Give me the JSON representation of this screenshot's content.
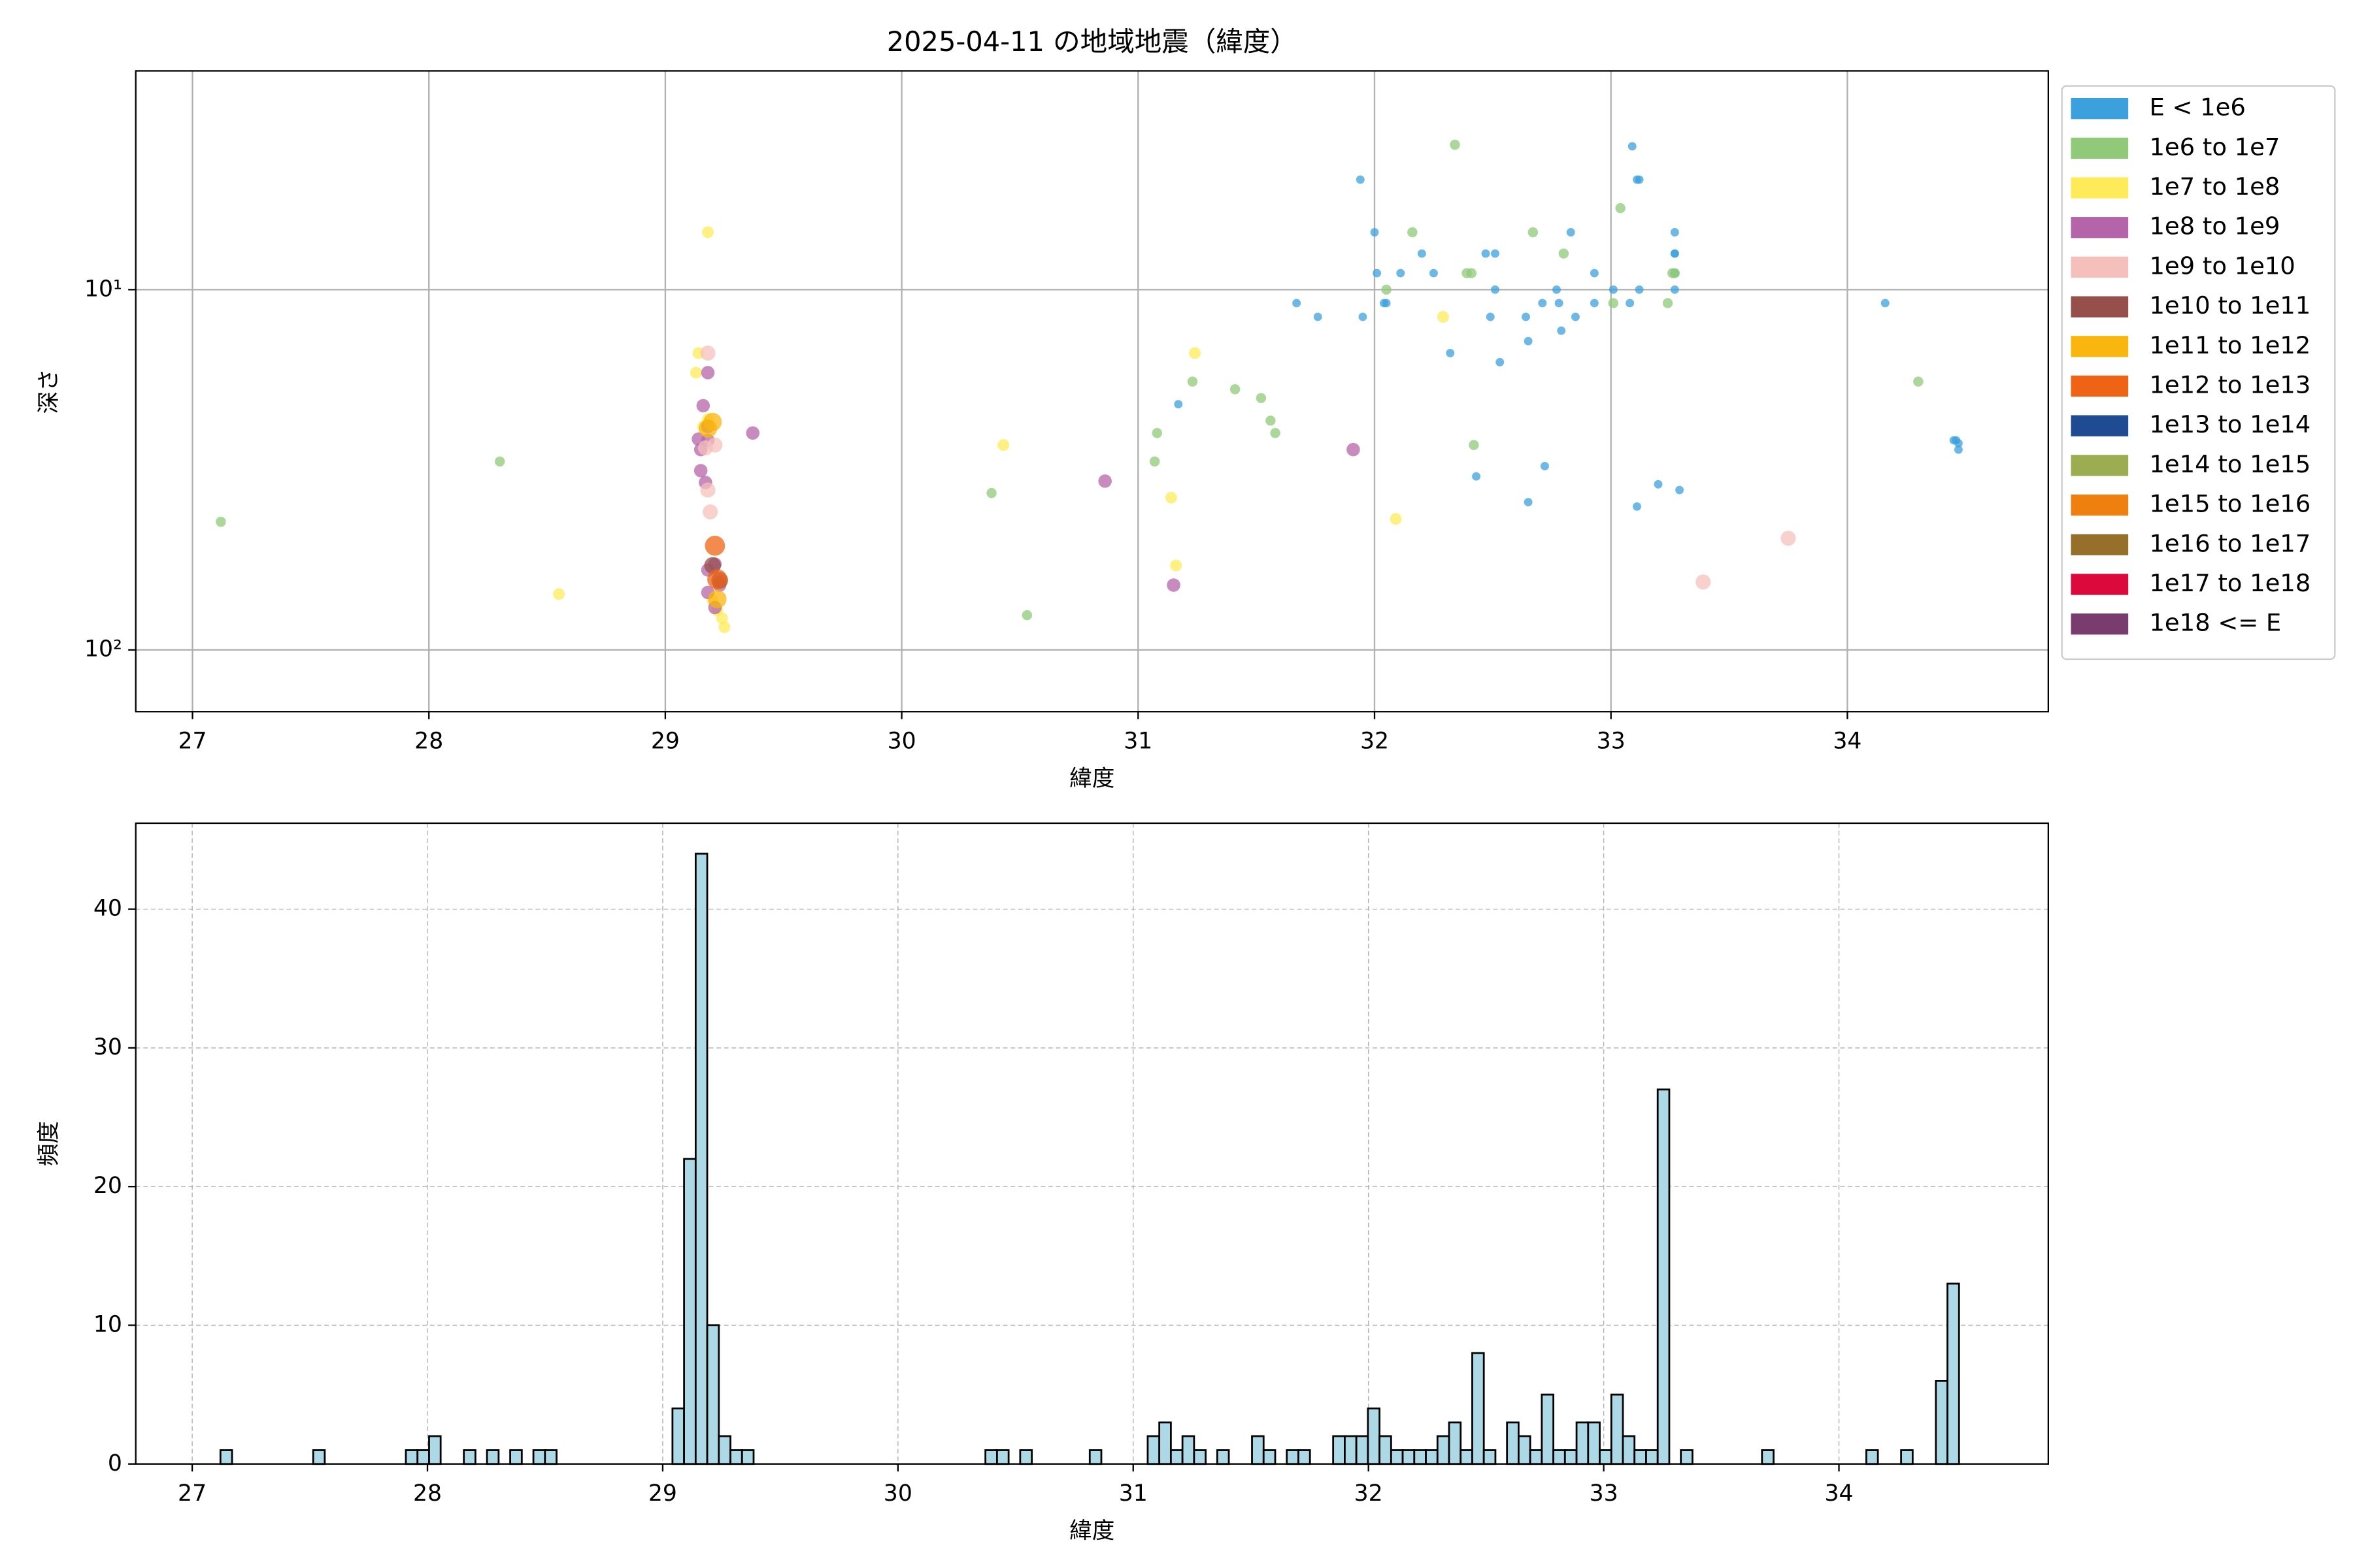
{
  "chart_data": [
    {
      "type": "scatter",
      "title": "2025-04-11 の地域地震（緯度）",
      "xlabel": "緯度",
      "ylabel": "深さ",
      "xlim": [
        26.76,
        34.85
      ],
      "xticks": [
        27,
        28,
        29,
        30,
        31,
        32,
        33,
        34
      ],
      "ylim": [
        2.47,
        148.4
      ],
      "y_log": true,
      "y_inverted": true,
      "yticks": [
        {
          "value": 10,
          "label": "10¹"
        },
        {
          "value": 100,
          "label": "10²"
        }
      ],
      "grid": true,
      "legend": "outside-right",
      "series": [
        {
          "name": "E < 1e6",
          "color": "#3ca0dc",
          "x": [
            31.94,
            32.0,
            32.01,
            32.11,
            32.2,
            32.25,
            32.04,
            32.05,
            31.67,
            31.76,
            31.95,
            31.17,
            32.47,
            32.51,
            32.51,
            32.77,
            32.83,
            32.93,
            33.01,
            33.08,
            33.09,
            33.11,
            33.12,
            33.12,
            33.27,
            33.27,
            33.27,
            33.27,
            33.27,
            32.71,
            32.78,
            32.93,
            32.64,
            32.49,
            32.85,
            32.79,
            32.65,
            32.32,
            32.53,
            32.72,
            32.43,
            32.65,
            33.2,
            33.11,
            33.29,
            34.16,
            34.46,
            34.47,
            34.47,
            34.45
          ],
          "values": [
            4.95,
            6.93,
            9.0,
            9.0,
            7.94,
            9.0,
            10.9,
            10.9,
            10.9,
            11.9,
            11.9,
            20.8,
            7.94,
            7.94,
            10,
            10,
            6.93,
            9.0,
            10,
            10.9,
            4.0,
            4.95,
            4.95,
            10,
            6.93,
            7.94,
            7.94,
            9.0,
            10,
            10.9,
            10.9,
            10.9,
            11.9,
            11.9,
            11.9,
            13.0,
            13.9,
            15.0,
            15.9,
            30.9,
            33.0,
            38.9,
            34.7,
            40.0,
            36.0,
            10.9,
            26.2,
            26.7,
            27.8,
            26.2
          ]
        },
        {
          "name": "1e6 to 1e7",
          "color": "#90c978",
          "x": [
            27.12,
            28.3,
            30.38,
            30.53,
            31.08,
            31.07,
            31.23,
            31.41,
            31.52,
            31.56,
            31.58,
            32.05,
            32.16,
            32.34,
            32.39,
            32.41,
            32.42,
            32.67,
            32.8,
            33.04,
            33.01,
            33.24,
            33.26,
            33.27,
            34.3
          ],
          "values": [
            44.1,
            30.0,
            36.7,
            80.1,
            25.0,
            30.0,
            18.0,
            18.9,
            20.0,
            23.1,
            25.0,
            10.0,
            6.93,
            3.96,
            9.0,
            9.0,
            27.0,
            6.93,
            7.94,
            5.94,
            10.9,
            10.9,
            9.0,
            9.0,
            18.0
          ]
        },
        {
          "name": "1e7 to 1e8",
          "color": "#ffeb5a",
          "x": [
            29.18,
            28.55,
            30.43,
            31.14,
            31.16,
            31.24,
            32.09,
            32.29,
            29.14,
            29.13,
            29.16,
            29.18,
            29.2,
            29.24,
            29.25,
            29.22
          ],
          "values": [
            6.93,
            70.0,
            27.0,
            37.8,
            58.3,
            15.0,
            43.3,
            11.9,
            15.0,
            17.0,
            24.0,
            22.9,
            72.8,
            81.7,
            86.5,
            77.8
          ]
        },
        {
          "name": "1e8 to 1e9",
          "color": "#b464a8",
          "x": [
            29.18,
            29.16,
            29.14,
            29.15,
            29.18,
            29.18,
            29.15,
            29.17,
            29.18,
            29.18,
            29.21,
            29.21,
            29.23,
            29.23,
            29.37,
            30.86,
            31.15,
            31.91
          ],
          "values": [
            17.0,
            21.0,
            26.0,
            27.8,
            26.2,
            24.0,
            31.8,
            34.3,
            60.0,
            69.3,
            57.8,
            76.3,
            64.8,
            66.1,
            25.0,
            34.0,
            66.1,
            27.8
          ]
        },
        {
          "name": "1e9 to 1e10",
          "color": "#f5c0bb",
          "x": [
            29.18,
            29.17,
            29.18,
            29.19,
            29.21,
            33.75,
            33.39
          ],
          "values": [
            15.0,
            27.5,
            36.0,
            41.4,
            27.0,
            49.0,
            64.8
          ]
        },
        {
          "name": "1e10 to 1e11",
          "color": "#964f4a",
          "x": [
            29.2,
            29.23
          ],
          "values": [
            58.3,
            64.1
          ]
        },
        {
          "name": "1e11 to 1e12",
          "color": "#f9b60e",
          "x": [
            29.18,
            29.2,
            29.22
          ],
          "values": [
            24.3,
            23.3,
            72.3
          ]
        },
        {
          "name": "1e12 to 1e13",
          "color": "#ef6414",
          "x": [
            29.21,
            29.22
          ],
          "values": [
            51.4,
            63.7
          ]
        },
        {
          "name": "1e13 to 1e14",
          "color": "#1e4b91",
          "x": [],
          "values": []
        },
        {
          "name": "1e14 to 1e15",
          "color": "#9bad50",
          "x": [],
          "values": []
        },
        {
          "name": "1e15 to 1e16",
          "color": "#ef7f0f",
          "x": [],
          "values": []
        },
        {
          "name": "1e16 to 1e17",
          "color": "#966f2b",
          "x": [],
          "values": []
        },
        {
          "name": "1e17 to 1e18",
          "color": "#dc0a3c",
          "x": [],
          "values": []
        },
        {
          "name": "1e18 <= E",
          "color": "#783c6e",
          "x": [],
          "values": []
        }
      ]
    },
    {
      "type": "histogram",
      "xlabel": "緯度",
      "ylabel": "頻度",
      "color": "#add8e6",
      "edgecolor": "#000000",
      "xlim": [
        26.76,
        34.89
      ],
      "xticks": [
        27,
        28,
        29,
        30,
        31,
        32,
        33,
        34
      ],
      "ylim": [
        0,
        46.2
      ],
      "yticks": [
        0,
        10,
        20,
        30,
        40
      ],
      "grid": true,
      "grid_style": "dashed",
      "bins": [
        27.12,
        27.1693,
        27.2185,
        27.2678,
        27.3171,
        27.3664,
        27.4156,
        27.4649,
        27.5142,
        27.5634,
        27.6127,
        27.662,
        27.7112,
        27.7605,
        27.8098,
        27.8591,
        27.9083,
        27.9576,
        28.0069,
        28.0561,
        28.1054,
        28.1547,
        28.2039,
        28.2532,
        28.3025,
        28.3518,
        28.401,
        28.4503,
        28.4996,
        28.5488,
        28.5981,
        28.6474,
        28.6966,
        28.7459,
        28.7952,
        28.8445,
        28.8937,
        28.943,
        28.9923,
        29.0415,
        29.0908,
        29.1401,
        29.1893,
        29.2386,
        29.2879,
        29.3372,
        29.3864,
        29.4357,
        29.485,
        29.5342,
        29.5835,
        29.6328,
        29.682,
        29.7313,
        29.7806,
        29.8299,
        29.8791,
        29.9284,
        29.9777,
        30.0269,
        30.0762,
        30.1255,
        30.1747,
        30.224,
        30.2733,
        30.3226,
        30.3718,
        30.4211,
        30.4704,
        30.5196,
        30.5689,
        30.6182,
        30.6674,
        30.7167,
        30.766,
        30.8153,
        30.8645,
        30.9138,
        30.9631,
        31.0123,
        31.0616,
        31.1109,
        31.1601,
        31.2094,
        31.2587,
        31.308,
        31.3572,
        31.4065,
        31.4558,
        31.505,
        31.5543,
        31.6036,
        31.6528,
        31.7021,
        31.7514,
        31.8007,
        31.8499,
        31.8992,
        31.9485,
        31.9977,
        32.047,
        32.0963,
        32.1455,
        32.1948,
        32.2441,
        32.2934,
        32.3426,
        32.3919,
        32.4412,
        32.4904,
        32.5397,
        32.589,
        32.6382,
        32.6875,
        32.7368,
        32.7861,
        32.8353,
        32.8846,
        32.9339,
        32.9831,
        33.0324,
        33.0817,
        33.1309,
        33.1802,
        33.2295,
        33.2788,
        33.328,
        33.3773,
        33.4266,
        33.4758,
        33.5251,
        33.5744,
        33.6236,
        33.6729,
        33.7222,
        33.7715,
        33.8207,
        33.87,
        33.9193,
        33.9685,
        34.0178,
        34.0671,
        34.1163,
        34.1656,
        34.2149,
        34.2642,
        34.3134,
        34.3627,
        34.412,
        34.4612,
        34.5105
      ],
      "values": [
        1,
        0,
        0,
        0,
        0,
        0,
        0,
        0,
        1,
        0,
        0,
        0,
        0,
        0,
        0,
        0,
        1,
        1,
        2,
        0,
        0,
        1,
        0,
        1,
        0,
        1,
        0,
        1,
        1,
        0,
        0,
        0,
        0,
        0,
        0,
        0,
        0,
        0,
        0,
        4,
        22,
        44,
        10,
        2,
        1,
        1,
        0,
        0,
        0,
        0,
        0,
        0,
        0,
        0,
        0,
        0,
        0,
        0,
        0,
        0,
        0,
        0,
        0,
        0,
        0,
        0,
        1,
        1,
        0,
        1,
        0,
        0,
        0,
        0,
        0,
        1,
        0,
        0,
        0,
        0,
        2,
        3,
        1,
        2,
        1,
        0,
        1,
        0,
        0,
        2,
        1,
        0,
        1,
        1,
        0,
        0,
        2,
        2,
        2,
        4,
        2,
        1,
        1,
        1,
        1,
        2,
        3,
        1,
        8,
        1,
        0,
        3,
        2,
        1,
        5,
        1,
        1,
        3,
        3,
        1,
        5,
        2,
        1,
        1,
        27,
        0,
        1,
        0,
        0,
        0,
        0,
        0,
        0,
        1,
        0,
        0,
        0,
        0,
        0,
        0,
        0,
        0,
        1,
        0,
        0,
        1,
        0,
        0,
        6,
        13
      ]
    }
  ]
}
